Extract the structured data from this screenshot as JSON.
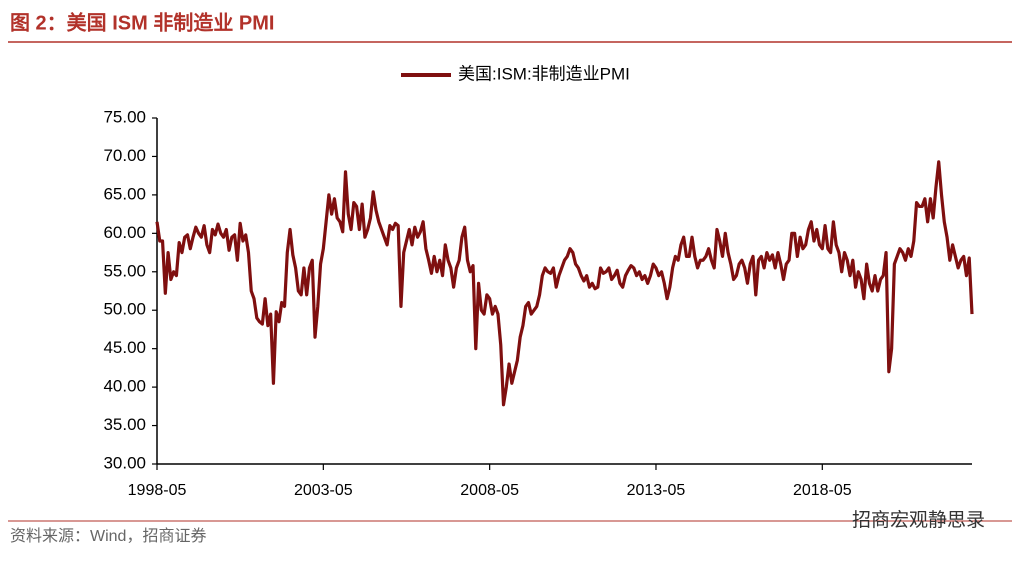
{
  "title": "图 2：美国 ISM 非制造业 PMI",
  "source": "资料来源：Wind，招商证券",
  "watermark": "招商宏观静思录",
  "chart_data": {
    "type": "line",
    "x": [
      "1998-05",
      "1998-06",
      "1998-07",
      "1998-08",
      "1998-09",
      "1998-10",
      "1998-11",
      "1998-12",
      "1999-01",
      "1999-02",
      "1999-03",
      "1999-04",
      "1999-05",
      "1999-06",
      "1999-07",
      "1999-08",
      "1999-09",
      "1999-10",
      "1999-11",
      "1999-12",
      "2000-01",
      "2000-02",
      "2000-03",
      "2000-04",
      "2000-05",
      "2000-06",
      "2000-07",
      "2000-08",
      "2000-09",
      "2000-10",
      "2000-11",
      "2000-12",
      "2001-01",
      "2001-02",
      "2001-03",
      "2001-04",
      "2001-05",
      "2001-06",
      "2001-07",
      "2001-08",
      "2001-09",
      "2001-10",
      "2001-11",
      "2001-12",
      "2002-01",
      "2002-02",
      "2002-03",
      "2002-04",
      "2002-05",
      "2002-06",
      "2002-07",
      "2002-08",
      "2002-09",
      "2002-10",
      "2002-11",
      "2002-12",
      "2003-01",
      "2003-02",
      "2003-03",
      "2003-04",
      "2003-05",
      "2003-06",
      "2003-07",
      "2003-08",
      "2003-09",
      "2003-10",
      "2003-11",
      "2003-12",
      "2004-01",
      "2004-02",
      "2004-03",
      "2004-04",
      "2004-05",
      "2004-06",
      "2004-07",
      "2004-08",
      "2004-09",
      "2004-10",
      "2004-11",
      "2004-12",
      "2005-01",
      "2005-02",
      "2005-03",
      "2005-04",
      "2005-05",
      "2005-06",
      "2005-07",
      "2005-08",
      "2005-09",
      "2005-10",
      "2005-11",
      "2005-12",
      "2006-01",
      "2006-02",
      "2006-03",
      "2006-04",
      "2006-05",
      "2006-06",
      "2006-07",
      "2006-08",
      "2006-09",
      "2006-10",
      "2006-11",
      "2006-12",
      "2007-01",
      "2007-02",
      "2007-03",
      "2007-04",
      "2007-05",
      "2007-06",
      "2007-07",
      "2007-08",
      "2007-09",
      "2007-10",
      "2007-11",
      "2007-12",
      "2008-01",
      "2008-02",
      "2008-03",
      "2008-04",
      "2008-05",
      "2008-06",
      "2008-07",
      "2008-08",
      "2008-09",
      "2008-10",
      "2008-11",
      "2008-12",
      "2009-01",
      "2009-02",
      "2009-03",
      "2009-04",
      "2009-05",
      "2009-06",
      "2009-07",
      "2009-08",
      "2009-09",
      "2009-10",
      "2009-11",
      "2009-12",
      "2010-01",
      "2010-02",
      "2010-03",
      "2010-04",
      "2010-05",
      "2010-06",
      "2010-07",
      "2010-08",
      "2010-09",
      "2010-10",
      "2010-11",
      "2010-12",
      "2011-01",
      "2011-02",
      "2011-03",
      "2011-04",
      "2011-05",
      "2011-06",
      "2011-07",
      "2011-08",
      "2011-09",
      "2011-10",
      "2011-11",
      "2011-12",
      "2012-01",
      "2012-02",
      "2012-03",
      "2012-04",
      "2012-05",
      "2012-06",
      "2012-07",
      "2012-08",
      "2012-09",
      "2012-10",
      "2012-11",
      "2012-12",
      "2013-01",
      "2013-02",
      "2013-03",
      "2013-04",
      "2013-05",
      "2013-06",
      "2013-07",
      "2013-08",
      "2013-09",
      "2013-10",
      "2013-11",
      "2013-12",
      "2014-01",
      "2014-02",
      "2014-03",
      "2014-04",
      "2014-05",
      "2014-06",
      "2014-07",
      "2014-08",
      "2014-09",
      "2014-10",
      "2014-11",
      "2014-12",
      "2015-01",
      "2015-02",
      "2015-03",
      "2015-04",
      "2015-05",
      "2015-06",
      "2015-07",
      "2015-08",
      "2015-09",
      "2015-10",
      "2015-11",
      "2015-12",
      "2016-01",
      "2016-02",
      "2016-03",
      "2016-04",
      "2016-05",
      "2016-06",
      "2016-07",
      "2016-08",
      "2016-09",
      "2016-10",
      "2016-11",
      "2016-12",
      "2017-01",
      "2017-02",
      "2017-03",
      "2017-04",
      "2017-05",
      "2017-06",
      "2017-07",
      "2017-08",
      "2017-09",
      "2017-10",
      "2017-11",
      "2017-12",
      "2018-01",
      "2018-02",
      "2018-03",
      "2018-04",
      "2018-05",
      "2018-06",
      "2018-07",
      "2018-08",
      "2018-09",
      "2018-10",
      "2018-11",
      "2018-12",
      "2019-01",
      "2019-02",
      "2019-03",
      "2019-04",
      "2019-05",
      "2019-06",
      "2019-07",
      "2019-08",
      "2019-09",
      "2019-10",
      "2019-11",
      "2019-12",
      "2020-01",
      "2020-02",
      "2020-03",
      "2020-04",
      "2020-05",
      "2020-06",
      "2020-07",
      "2020-08",
      "2020-09",
      "2020-10",
      "2020-11",
      "2020-12",
      "2021-01",
      "2021-02",
      "2021-03",
      "2021-04",
      "2021-05",
      "2021-06",
      "2021-07",
      "2021-08",
      "2021-09",
      "2021-10",
      "2021-11",
      "2021-12",
      "2022-01",
      "2022-02",
      "2022-03",
      "2022-04",
      "2022-05",
      "2022-06",
      "2022-07",
      "2022-08",
      "2022-09",
      "2022-10",
      "2022-11"
    ],
    "series": [
      {
        "name": "美国:ISM:非制造业PMI",
        "color": "#7f0f0f",
        "values": [
          61.5,
          59,
          59,
          52.2,
          57.5,
          54,
          55,
          54.5,
          58.8,
          57.5,
          59.5,
          59.8,
          58,
          59.5,
          60.8,
          60,
          59.5,
          61,
          58.5,
          57.5,
          60.5,
          59.8,
          61.2,
          60,
          59.5,
          60.5,
          57.8,
          59.5,
          59.8,
          56.5,
          61.3,
          59,
          59.8,
          57.5,
          52.5,
          51.5,
          49,
          48.5,
          48.2,
          51.5,
          48,
          49.5,
          40.5,
          49.8,
          48.5,
          51,
          50.5,
          57.5,
          60.5,
          57.2,
          55.5,
          52.5,
          52,
          55.5,
          52,
          55.5,
          56.5,
          46.5,
          50.5,
          56,
          58,
          61.5,
          65,
          62.5,
          64.5,
          62,
          61.5,
          60.2,
          68,
          62.5,
          60.5,
          64,
          63.5,
          60.5,
          63.8,
          59.5,
          60.5,
          62,
          65.4,
          63,
          61.5,
          60.5,
          59.5,
          58.5,
          61,
          60.5,
          61.3,
          61,
          50.5,
          57.5,
          59,
          60.5,
          58.5,
          60.8,
          59.5,
          60.2,
          61.5,
          58,
          56.5,
          54.8,
          57,
          55,
          56.5,
          54.5,
          58.5,
          56.5,
          55.5,
          53,
          55.5,
          56.5,
          59.5,
          60.8,
          56.5,
          55,
          55.8,
          45,
          53.5,
          50,
          49.5,
          52,
          51.5,
          49.5,
          50.5,
          49.5,
          45.5,
          37.7,
          40,
          43,
          40.5,
          42,
          43.5,
          46.5,
          48,
          50.5,
          51,
          49.5,
          50,
          50.5,
          52,
          54.5,
          55.5,
          55,
          54.8,
          55.5,
          53,
          54.5,
          55.5,
          56.5,
          57,
          58,
          57.5,
          56,
          55.5,
          54.5,
          53.8,
          54.5,
          53,
          53.5,
          52.8,
          53,
          55.5,
          54.8,
          55,
          55.5,
          54,
          54.5,
          55.2,
          53.5,
          53,
          54.5,
          55.2,
          55.8,
          55.5,
          54.5,
          55,
          54,
          54.5,
          53.5,
          54.5,
          56,
          55.5,
          54.5,
          55,
          53.5,
          51.5,
          53,
          55.5,
          57,
          56.5,
          58.5,
          59.5,
          57,
          57,
          59.5,
          57,
          55.5,
          56.5,
          56.5,
          57,
          58,
          56.5,
          55.5,
          60.5,
          59,
          57,
          60,
          57.5,
          56,
          54,
          54.5,
          56,
          56.5,
          55.5,
          53.5,
          56,
          57,
          52,
          56.5,
          57,
          55.5,
          57.5,
          56.5,
          57.2,
          55.5,
          57.5,
          56,
          54,
          56,
          56.5,
          60,
          60,
          57,
          59.5,
          58,
          58.5,
          60.5,
          61.5,
          59,
          60.5,
          58.5,
          58,
          61,
          58,
          57.5,
          61.5,
          58.5,
          57.5,
          55,
          57.5,
          56.5,
          54.5,
          56.5,
          53,
          55,
          54,
          51.5,
          56,
          53.5,
          52.5,
          54.5,
          52.5,
          54,
          54.5,
          57.5,
          42,
          45,
          56,
          57,
          58,
          57.5,
          56.5,
          58,
          57,
          59,
          64,
          63.5,
          63.5,
          64.5,
          61.5,
          64.5,
          62,
          66,
          69.3,
          65,
          61.5,
          59.5,
          56.5,
          58.5,
          57,
          55.5,
          56.5,
          57,
          54.5,
          56.8,
          49.5
        ]
      }
    ],
    "xlim": [
      "1998-05",
      "2022-11"
    ],
    "xticks": [
      "1998-05",
      "2003-05",
      "2008-05",
      "2013-05",
      "2018-05"
    ],
    "ylim": [
      30,
      75
    ],
    "yticks": [
      {
        "value": 30,
        "label": "30.00"
      },
      {
        "value": 35,
        "label": "35.00"
      },
      {
        "value": 40,
        "label": "40.00"
      },
      {
        "value": 45,
        "label": "45.00"
      },
      {
        "value": 50,
        "label": "50.00"
      },
      {
        "value": 55,
        "label": "55.00"
      },
      {
        "value": 60,
        "label": "60.00"
      },
      {
        "value": 65,
        "label": "65.00"
      },
      {
        "value": 70,
        "label": "70.00"
      },
      {
        "value": 75,
        "label": "75.00"
      }
    ],
    "grid": false,
    "legend": "top"
  }
}
